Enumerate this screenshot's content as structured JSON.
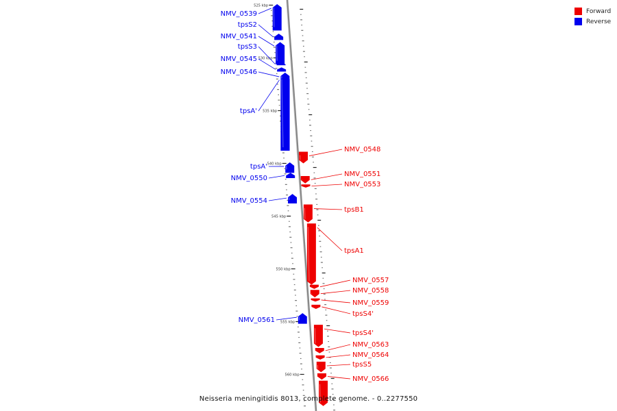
{
  "colors": {
    "forward": "#ee0000",
    "reverse": "#0000ee",
    "backbone": "#888888",
    "tick": "#222222"
  },
  "legend": [
    {
      "label": "Forward",
      "color": "#ee0000"
    },
    {
      "label": "Reverse",
      "color": "#0000ee"
    }
  ],
  "caption": "Neisseria meningitidis 8013, complete genome. - 0..2277550",
  "axis": {
    "unit": "kbp",
    "major_ticks": [
      {
        "kbp": 525,
        "label": "525 kbp"
      },
      {
        "kbp": 530,
        "label": "530 kbp"
      },
      {
        "kbp": 535,
        "label": "535 kbp"
      },
      {
        "kbp": 540,
        "label": "540 kbp"
      },
      {
        "kbp": 545,
        "label": "545 kbp"
      },
      {
        "kbp": 550,
        "label": "550 kbp"
      },
      {
        "kbp": 555,
        "label": "555 kbp"
      },
      {
        "kbp": 560,
        "label": "560 kbp"
      }
    ]
  },
  "genes": [
    {
      "name": "NMV_0539",
      "strand": "reverse",
      "start": 524.9,
      "end": 527.4
    },
    {
      "name": "tpsS2",
      "strand": "reverse",
      "start": 527.7,
      "end": 528.3
    },
    {
      "name": "NMV_0541",
      "strand": "reverse",
      "start": 528.5,
      "end": 530.6
    },
    {
      "name": "tpsS3",
      "strand": "reverse",
      "start": 530.5,
      "end": 530.7
    },
    {
      "name": "NMV_0545",
      "strand": "reverse",
      "start": 530.9,
      "end": 531.3
    },
    {
      "name": "NMV_0546",
      "strand": "reverse",
      "start": 531.4,
      "end": 538.8
    },
    {
      "name": "tpsA'",
      "strand": "reverse",
      "start": 531.7,
      "end": 538.8
    },
    {
      "name": "NMV_0548",
      "strand": "forward",
      "start": 538.9,
      "end": 540.0
    },
    {
      "name": "tpsA'",
      "strand": "reverse",
      "start": 539.9,
      "end": 540.9
    },
    {
      "name": "NMV_0550",
      "strand": "reverse",
      "start": 540.9,
      "end": 541.4
    },
    {
      "name": "NMV_0551",
      "strand": "forward",
      "start": 541.2,
      "end": 541.9
    },
    {
      "name": "NMV_0553",
      "strand": "forward",
      "start": 542.0,
      "end": 542.3
    },
    {
      "name": "NMV_0554",
      "strand": "reverse",
      "start": 542.9,
      "end": 543.8
    },
    {
      "name": "tpsB1",
      "strand": "forward",
      "start": 543.9,
      "end": 545.6
    },
    {
      "name": "tpsA1",
      "strand": "forward",
      "start": 545.7,
      "end": 551.5
    },
    {
      "name": "NMV_0557",
      "strand": "forward",
      "start": 551.5,
      "end": 551.9
    },
    {
      "name": "NMV_0558",
      "strand": "forward",
      "start": 552.0,
      "end": 552.7
    },
    {
      "name": "NMV_0559",
      "strand": "forward",
      "start": 552.8,
      "end": 553.1
    },
    {
      "name": "tpsS4'",
      "strand": "forward",
      "start": 553.4,
      "end": 553.8
    },
    {
      "name": "NMV_0561",
      "strand": "reverse",
      "start": 554.2,
      "end": 555.2
    },
    {
      "name": "tpsS4'",
      "strand": "forward",
      "start": 555.3,
      "end": 557.4
    },
    {
      "name": "NMV_0563",
      "strand": "forward",
      "start": 557.5,
      "end": 558.0
    },
    {
      "name": "NMV_0564",
      "strand": "forward",
      "start": 558.2,
      "end": 558.6
    },
    {
      "name": "tpsS5",
      "strand": "forward",
      "start": 558.8,
      "end": 559.8
    },
    {
      "name": "NMV_0566",
      "strand": "forward",
      "start": 559.9,
      "end": 560.5
    },
    {
      "name": "",
      "strand": "forward",
      "start": 560.6,
      "end": 563.0
    }
  ]
}
